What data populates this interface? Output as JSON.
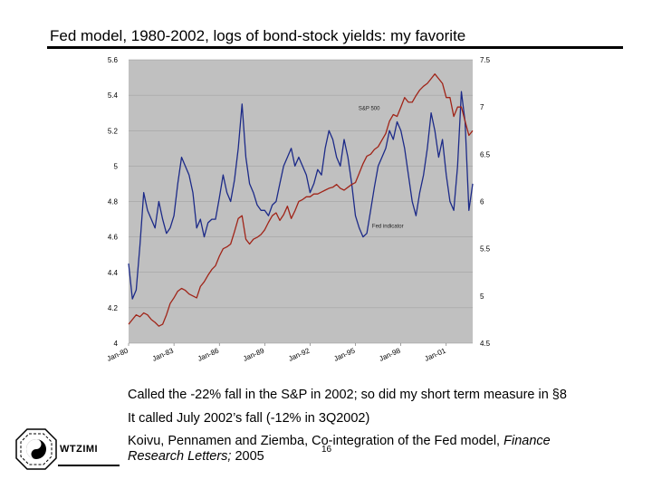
{
  "slide": {
    "title": "Fed model, 1980-2002, logs of bond-stock yields: my favorite",
    "notes": [
      "Called the -22% fall in the S&P in 2002; so did my short term measure in §8",
      "It called July 2002’s fall (-12% in 3Q2002)"
    ],
    "citation": {
      "text_a": "Koivu, Pennamen and Ziemba, Co-integration of the Fed model, ",
      "text_b": "Finance",
      "text_c": "Research Letters;",
      "text_d": " 2005"
    },
    "page_number": "16",
    "logo_text": "WTZIMI"
  },
  "colors": {
    "plot_bg": "#c0c0c0",
    "fed_line": "#1c2a88",
    "sp_line": "#a02418",
    "grid": "#9a9a9a"
  },
  "chart_data": {
    "type": "line",
    "title": "",
    "x_ticks": [
      "Jan-80",
      "Jan-83",
      "Jan-86",
      "Jan-89",
      "Jan-92",
      "Jan-95",
      "Jan-98",
      "Jan-01"
    ],
    "x_range": [
      1980.0,
      2002.75
    ],
    "y_left": {
      "ticks": [
        "4",
        "4.2",
        "4.4",
        "4.6",
        "4.8",
        "5",
        "5.2",
        "5.4",
        "5.6"
      ],
      "range": [
        4,
        5.6
      ]
    },
    "y_right": {
      "ticks": [
        "4.5",
        "5",
        "5.5",
        "6",
        "6.5",
        "7",
        "7.5"
      ],
      "range": [
        4.5,
        7.5
      ]
    },
    "grid": true,
    "series": [
      {
        "name": "Fed indicator",
        "axis": "left",
        "x": [
          1980.0,
          1980.25,
          1980.5,
          1980.75,
          1981.0,
          1981.25,
          1981.5,
          1981.75,
          1982.0,
          1982.25,
          1982.5,
          1982.75,
          1983.0,
          1983.25,
          1983.5,
          1983.75,
          1984.0,
          1984.25,
          1984.5,
          1984.75,
          1985.0,
          1985.25,
          1985.5,
          1985.75,
          1986.0,
          1986.25,
          1986.5,
          1986.75,
          1987.0,
          1987.25,
          1987.5,
          1987.75,
          1988.0,
          1988.25,
          1988.5,
          1988.75,
          1989.0,
          1989.25,
          1989.5,
          1989.75,
          1990.0,
          1990.25,
          1990.5,
          1990.75,
          1991.0,
          1991.25,
          1991.5,
          1991.75,
          1992.0,
          1992.25,
          1992.5,
          1992.75,
          1993.0,
          1993.25,
          1993.5,
          1993.75,
          1994.0,
          1994.25,
          1994.5,
          1994.75,
          1995.0,
          1995.25,
          1995.5,
          1995.75,
          1996.0,
          1996.25,
          1996.5,
          1996.75,
          1997.0,
          1997.25,
          1997.5,
          1997.75,
          1998.0,
          1998.25,
          1998.5,
          1998.75,
          1999.0,
          1999.25,
          1999.5,
          1999.75,
          2000.0,
          2000.25,
          2000.5,
          2000.75,
          2001.0,
          2001.25,
          2001.5,
          2001.75,
          2002.0,
          2002.25,
          2002.5,
          2002.75
        ],
        "values": [
          4.45,
          4.25,
          4.3,
          4.55,
          4.85,
          4.75,
          4.7,
          4.65,
          4.8,
          4.7,
          4.62,
          4.65,
          4.72,
          4.9,
          5.05,
          5.0,
          4.95,
          4.85,
          4.65,
          4.7,
          4.6,
          4.68,
          4.7,
          4.7,
          4.82,
          4.95,
          4.85,
          4.8,
          4.92,
          5.1,
          5.35,
          5.05,
          4.9,
          4.85,
          4.78,
          4.75,
          4.75,
          4.72,
          4.78,
          4.8,
          4.9,
          5.0,
          5.05,
          5.1,
          5.0,
          5.05,
          5.0,
          4.95,
          4.85,
          4.9,
          4.98,
          4.95,
          5.1,
          5.2,
          5.15,
          5.05,
          5.0,
          5.15,
          5.05,
          4.9,
          4.72,
          4.65,
          4.6,
          4.62,
          4.75,
          4.88,
          5.0,
          5.05,
          5.1,
          5.2,
          5.15,
          5.25,
          5.2,
          5.1,
          4.95,
          4.8,
          4.72,
          4.85,
          4.95,
          5.1,
          5.3,
          5.2,
          5.05,
          5.15,
          4.95,
          4.8,
          4.75,
          5.0,
          5.42,
          5.25,
          4.75,
          4.9
        ]
      },
      {
        "name": "S&P 500",
        "axis": "right",
        "x": [
          1980.0,
          1980.25,
          1980.5,
          1980.75,
          1981.0,
          1981.25,
          1981.5,
          1981.75,
          1982.0,
          1982.25,
          1982.5,
          1982.75,
          1983.0,
          1983.25,
          1983.5,
          1983.75,
          1984.0,
          1984.25,
          1984.5,
          1984.75,
          1985.0,
          1985.25,
          1985.5,
          1985.75,
          1986.0,
          1986.25,
          1986.5,
          1986.75,
          1987.0,
          1987.25,
          1987.5,
          1987.75,
          1988.0,
          1988.25,
          1988.5,
          1988.75,
          1989.0,
          1989.25,
          1989.5,
          1989.75,
          1990.0,
          1990.25,
          1990.5,
          1990.75,
          1991.0,
          1991.25,
          1991.5,
          1991.75,
          1992.0,
          1992.25,
          1992.5,
          1992.75,
          1993.0,
          1993.25,
          1993.5,
          1993.75,
          1994.0,
          1994.25,
          1994.5,
          1994.75,
          1995.0,
          1995.25,
          1995.5,
          1995.75,
          1996.0,
          1996.25,
          1996.5,
          1996.75,
          1997.0,
          1997.25,
          1997.5,
          1997.75,
          1998.0,
          1998.25,
          1998.5,
          1998.75,
          1999.0,
          1999.25,
          1999.5,
          1999.75,
          2000.0,
          2000.25,
          2000.5,
          2000.75,
          2001.0,
          2001.25,
          2001.5,
          2001.75,
          2002.0,
          2002.25,
          2002.5,
          2002.75
        ],
        "values": [
          4.7,
          4.75,
          4.8,
          4.78,
          4.82,
          4.8,
          4.75,
          4.72,
          4.68,
          4.7,
          4.8,
          4.92,
          4.98,
          5.05,
          5.08,
          5.06,
          5.02,
          5.0,
          4.98,
          5.1,
          5.15,
          5.22,
          5.28,
          5.32,
          5.42,
          5.5,
          5.52,
          5.55,
          5.68,
          5.82,
          5.85,
          5.6,
          5.55,
          5.6,
          5.62,
          5.65,
          5.7,
          5.78,
          5.85,
          5.88,
          5.8,
          5.86,
          5.95,
          5.82,
          5.9,
          6.0,
          6.02,
          6.05,
          6.05,
          6.08,
          6.08,
          6.1,
          6.12,
          6.14,
          6.15,
          6.18,
          6.14,
          6.12,
          6.15,
          6.18,
          6.2,
          6.3,
          6.4,
          6.48,
          6.5,
          6.55,
          6.58,
          6.65,
          6.72,
          6.85,
          6.92,
          6.9,
          7.0,
          7.1,
          7.05,
          7.05,
          7.12,
          7.18,
          7.22,
          7.25,
          7.3,
          7.35,
          7.3,
          7.25,
          7.1,
          7.1,
          6.9,
          7.0,
          7.0,
          6.85,
          6.7,
          6.75
        ]
      }
    ],
    "annotations": [
      {
        "text": "S&P 500",
        "x": 1995.2,
        "y_right": 6.97
      },
      {
        "text": "Fed indicator",
        "x": 1996.1,
        "y_right": 5.72
      }
    ]
  }
}
